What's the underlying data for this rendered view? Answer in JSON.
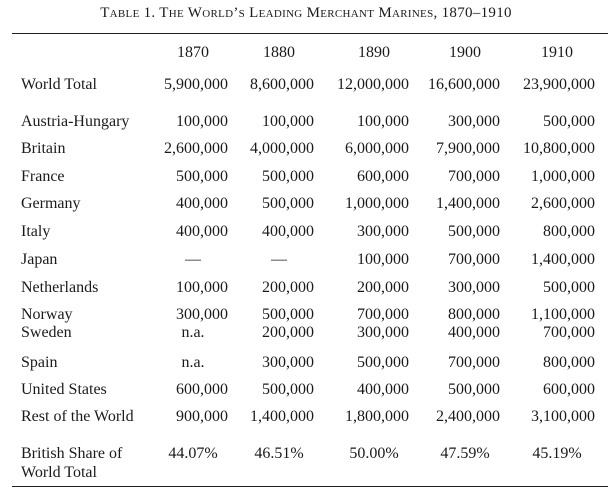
{
  "title": "Table 1. The World’s Leading Merchant Marines, 1870–1910",
  "columns": [
    "1870",
    "1880",
    "1890",
    "1900",
    "1910"
  ],
  "rows": [
    {
      "label": "World Total",
      "values": [
        "5,900,000",
        "8,600,000",
        "12,000,000",
        "16,600,000",
        "23,900,000"
      ]
    },
    {
      "label": "Austria-Hungary",
      "values": [
        "100,000",
        "100,000",
        "100,000",
        "300,000",
        "500,000"
      ]
    },
    {
      "label": "Britain",
      "values": [
        "2,600,000",
        "4,000,000",
        "6,000,000",
        "7,900,000",
        "10,800,000"
      ]
    },
    {
      "label": "France",
      "values": [
        "500,000",
        "500,000",
        "600,000",
        "700,000",
        "1,000,000"
      ]
    },
    {
      "label": "Germany",
      "values": [
        "400,000",
        "500,000",
        "1,000,000",
        "1,400,000",
        "2,600,000"
      ]
    },
    {
      "label": "Italy",
      "values": [
        "400,000",
        "400,000",
        "300,000",
        "500,000",
        "800,000"
      ]
    },
    {
      "label": "Japan",
      "values": [
        "—",
        "—",
        "100,000",
        "700,000",
        "1,400,000"
      ]
    },
    {
      "label": "Netherlands",
      "values": [
        "100,000",
        "200,000",
        "200,000",
        "300,000",
        "500,000"
      ]
    },
    {
      "label": "Norway",
      "values": [
        "300,000",
        "500,000",
        "700,000",
        "800,000",
        "1,100,000"
      ]
    },
    {
      "label": "Sweden",
      "values": [
        "n.a.",
        "200,000",
        "300,000",
        "400,000",
        "700,000"
      ]
    },
    {
      "label": "Spain",
      "values": [
        "n.a.",
        "300,000",
        "500,000",
        "700,000",
        "800,000"
      ]
    },
    {
      "label": "United States",
      "values": [
        "600,000",
        "500,000",
        "400,000",
        "500,000",
        "600,000"
      ]
    },
    {
      "label": "Rest of the World",
      "values": [
        "900,000",
        "1,400,000",
        "1,800,000",
        "2,400,000",
        "3,100,000"
      ]
    },
    {
      "label": "British Share of",
      "values": [
        "44.07%",
        "46.51%",
        "50.00%",
        "47.59%",
        "45.19%"
      ]
    },
    {
      "label": "World Total",
      "values": []
    }
  ]
}
